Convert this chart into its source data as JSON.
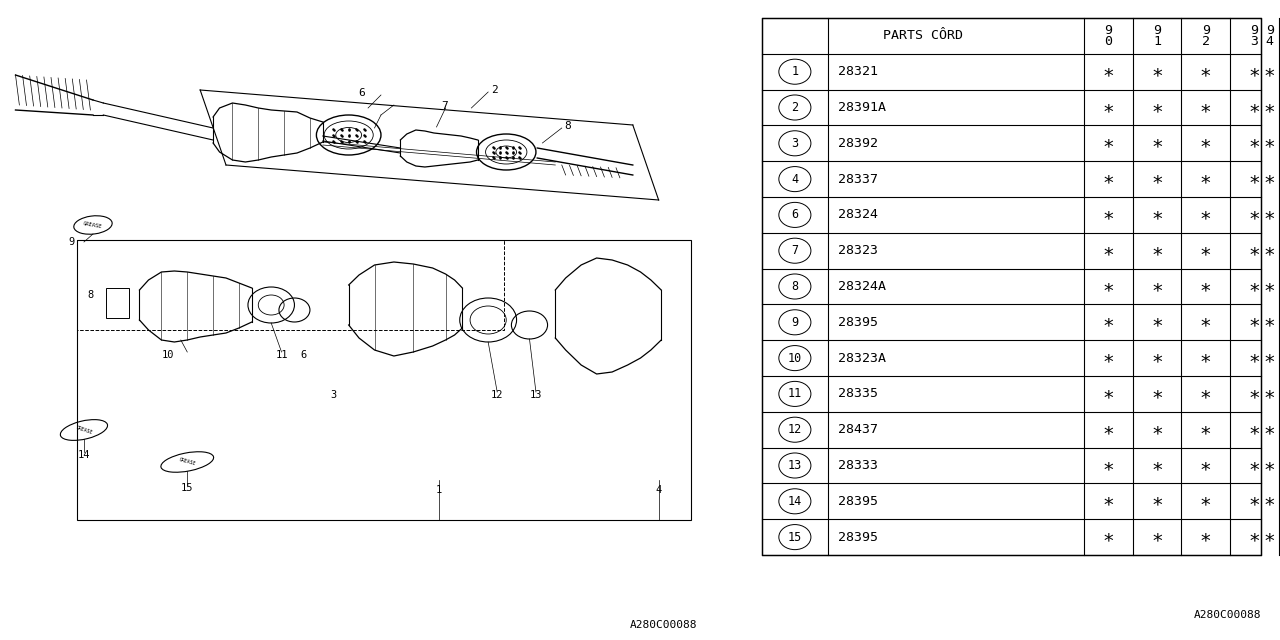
{
  "rows": [
    [
      "1",
      "28321",
      "∗",
      "∗",
      "∗",
      "∗",
      "∗"
    ],
    [
      "2",
      "28391A",
      "∗",
      "∗",
      "∗",
      "∗",
      "∗"
    ],
    [
      "3",
      "28392",
      "∗",
      "∗",
      "∗",
      "∗",
      "∗"
    ],
    [
      "4",
      "28337",
      "∗",
      "∗",
      "∗",
      "∗",
      "∗"
    ],
    [
      "6",
      "28324",
      "∗",
      "∗",
      "∗",
      "∗",
      "∗"
    ],
    [
      "7",
      "28323",
      "∗",
      "∗",
      "∗",
      "∗",
      "∗"
    ],
    [
      "8",
      "28324A",
      "∗",
      "∗",
      "∗",
      "∗",
      "∗"
    ],
    [
      "9",
      "28395",
      "∗",
      "∗",
      "∗",
      "∗",
      "∗"
    ],
    [
      "10",
      "28323A",
      "∗",
      "∗",
      "∗",
      "∗",
      "∗"
    ],
    [
      "11",
      "28335",
      "∗",
      "∗",
      "∗",
      "∗",
      "∗"
    ],
    [
      "12",
      "28437",
      "∗",
      "∗",
      "∗",
      "∗",
      "∗"
    ],
    [
      "13",
      "28333",
      "∗",
      "∗",
      "∗",
      "∗",
      "∗"
    ],
    [
      "14",
      "28395",
      "∗",
      "∗",
      "∗",
      "∗",
      "∗"
    ],
    [
      "15",
      "28395",
      "∗",
      "∗",
      "∗",
      "∗",
      "∗"
    ]
  ],
  "fig_code": "A280C00088",
  "bg_color": "#ffffff"
}
